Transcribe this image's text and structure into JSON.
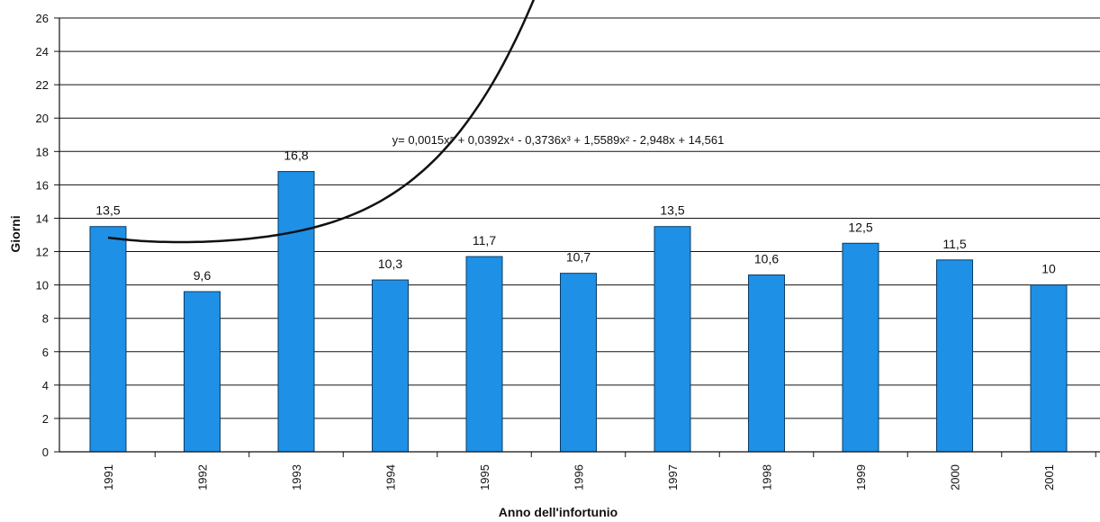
{
  "chart_data": {
    "type": "bar",
    "title": "",
    "xlabel": "Anno dell'infortunio",
    "ylabel": "Giorni",
    "ylim": [
      0,
      26
    ],
    "yticks": [
      0,
      2,
      4,
      6,
      8,
      10,
      12,
      14,
      16,
      18,
      20,
      22,
      24,
      26
    ],
    "grid": true,
    "categories": [
      "1991",
      "1992",
      "1993",
      "1994",
      "1995",
      "1996",
      "1997",
      "1998",
      "1999",
      "2000",
      "2001"
    ],
    "series": [
      {
        "values": [
          13.5,
          9.6,
          16.8,
          10.3,
          11.7,
          10.7,
          13.5,
          10.6,
          12.5,
          11.5,
          10
        ],
        "value_labels": [
          "13,5",
          "9,6",
          "16,8",
          "10,3",
          "11,7",
          "10,7",
          "13,5",
          "10,6",
          "12,5",
          "11,5",
          "10"
        ],
        "color": "#1E90E6"
      }
    ],
    "trendline": {
      "type": "polynomial",
      "order": 5,
      "coefficients": [
        0.0015,
        0.0392,
        -0.3736,
        1.5589,
        -2.948,
        14.561
      ],
      "color": "#111111"
    }
  },
  "annotations": {
    "equation_text": "y= 0,0015x⁵ + 0,0392x⁴ - 0,3736x³ + 1,5589x² - 2,948x + 14,561"
  }
}
